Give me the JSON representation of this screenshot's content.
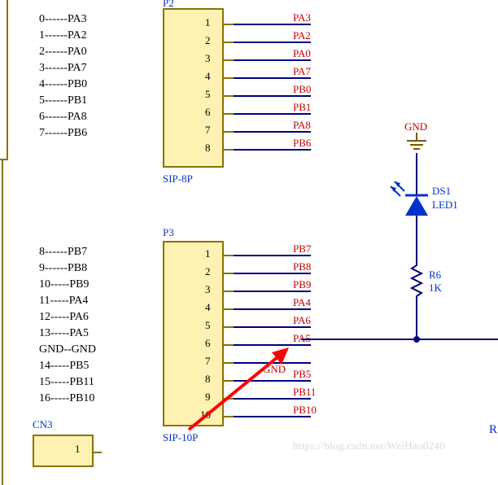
{
  "colors": {
    "net_red": "#c40000",
    "wire_blue": "#000080",
    "part_blue": "#0033cc",
    "box_fill": "#fff2b3",
    "box_border": "#8a7200",
    "brown": "#7a5a00"
  },
  "left_list1": [
    {
      "n": "0",
      "sig": "PA3"
    },
    {
      "n": "1",
      "sig": "PA2"
    },
    {
      "n": "2",
      "sig": "PA0"
    },
    {
      "n": "3",
      "sig": "PA7"
    },
    {
      "n": "4",
      "sig": "PB0"
    },
    {
      "n": "5",
      "sig": "PB1"
    },
    {
      "n": "6",
      "sig": "PA8"
    },
    {
      "n": "7",
      "sig": "PB6"
    }
  ],
  "left_list2": [
    {
      "n": "8",
      "sig": "PB7"
    },
    {
      "n": "9",
      "sig": "PB8"
    },
    {
      "n": "10",
      "sig": "PB9"
    },
    {
      "n": "11",
      "sig": "PA4"
    },
    {
      "n": "12",
      "sig": "PA6"
    },
    {
      "n": "13",
      "sig": "PA5"
    },
    {
      "n": "GND",
      "sig": "GND",
      "gnd": true
    },
    {
      "n": "14",
      "sig": "PB5"
    },
    {
      "n": "15",
      "sig": "PB11"
    },
    {
      "n": "16",
      "sig": "PB10"
    }
  ],
  "p2": {
    "ref": "P2",
    "val": "SIP-8P",
    "pins": [
      "1",
      "2",
      "3",
      "4",
      "5",
      "6",
      "7",
      "8"
    ],
    "nets": [
      "PA3",
      "PA2",
      "PA0",
      "PA7",
      "PB0",
      "PB1",
      "PA8",
      "PB6"
    ]
  },
  "p3": {
    "ref": "P3",
    "val": "SIP-10P",
    "pins": [
      "1",
      "2",
      "3",
      "4",
      "5",
      "6",
      "7",
      "8",
      "9",
      "10"
    ],
    "nets": [
      "PB7",
      "PB8",
      "PB9",
      "PA4",
      "PA6",
      "PA5",
      "GND",
      "PB5",
      "PB11",
      "PB10"
    ]
  },
  "cn3_ref": "CN3",
  "cn3_pin": "1",
  "gnd_label": "GND",
  "ds1_ref": "DS1",
  "ds1_val": "LED1",
  "r6_ref": "R6",
  "r6_val": "1K",
  "r_partial": "R",
  "watermark": "https://blog.csdn.net/WeiHao0240"
}
